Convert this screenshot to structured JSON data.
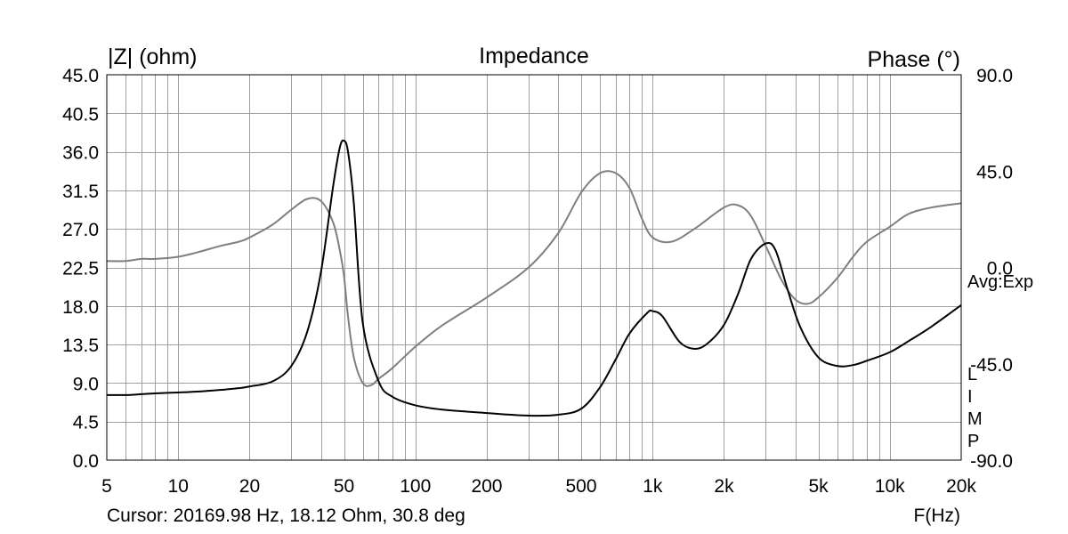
{
  "chart_data": {
    "type": "line",
    "title": "Impedance",
    "ylabel_left": "|Z| (ohm)",
    "ylabel_right": "Phase (°)",
    "xlabel": "F(Hz)",
    "x_scale": "log",
    "xlim": [
      5,
      20000
    ],
    "ylim_left": [
      0,
      45
    ],
    "ylim_right": [
      -90,
      90
    ],
    "grid": true,
    "x_ticks": [
      {
        "value": 5,
        "label": "5"
      },
      {
        "value": 10,
        "label": "10"
      },
      {
        "value": 20,
        "label": "20"
      },
      {
        "value": 50,
        "label": "50"
      },
      {
        "value": 100,
        "label": "100"
      },
      {
        "value": 200,
        "label": "200"
      },
      {
        "value": 500,
        "label": "500"
      },
      {
        "value": 1000,
        "label": "1k"
      },
      {
        "value": 2000,
        "label": "2k"
      },
      {
        "value": 5000,
        "label": "5k"
      },
      {
        "value": 10000,
        "label": "10k"
      },
      {
        "value": 20000,
        "label": "20k"
      }
    ],
    "y_ticks_left": [
      {
        "value": 45,
        "label": "45.0"
      },
      {
        "value": 40.5,
        "label": "40.5"
      },
      {
        "value": 36,
        "label": "36.0"
      },
      {
        "value": 31.5,
        "label": "31.5"
      },
      {
        "value": 27,
        "label": "27.0"
      },
      {
        "value": 22.5,
        "label": "22.5"
      },
      {
        "value": 18,
        "label": "18.0"
      },
      {
        "value": 13.5,
        "label": "13.5"
      },
      {
        "value": 9,
        "label": "9.0"
      },
      {
        "value": 4.5,
        "label": "4.5"
      },
      {
        "value": 0,
        "label": "0.0"
      }
    ],
    "y_ticks_right": [
      {
        "value": 90,
        "label": "90.0"
      },
      {
        "value": 45,
        "label": "45.0"
      },
      {
        "value": 0,
        "label": "0.0"
      },
      {
        "value": -45,
        "label": "-45.0"
      },
      {
        "value": -90,
        "label": "-90.0"
      }
    ],
    "series": [
      {
        "axis": "left",
        "color": "#000000",
        "x": [
          5,
          6,
          7,
          8,
          10,
          12,
          15,
          18,
          20,
          25,
          30,
          35,
          40,
          45,
          48,
          50,
          52,
          55,
          60,
          70,
          80,
          100,
          130,
          200,
          300,
          400,
          500,
          600,
          700,
          800,
          950,
          1000,
          1100,
          1300,
          1500,
          1700,
          2000,
          2300,
          2600,
          3000,
          3300,
          3700,
          4200,
          5000,
          6000,
          7000,
          8000,
          10000,
          12000,
          15000,
          20000
        ],
        "y": [
          7.6,
          7.6,
          7.7,
          7.8,
          7.9,
          8.0,
          8.2,
          8.4,
          8.6,
          9.2,
          11.0,
          15.0,
          22.0,
          32.0,
          36.5,
          37.3,
          36.0,
          30.0,
          16.0,
          9.2,
          7.4,
          6.4,
          5.9,
          5.5,
          5.2,
          5.3,
          6.0,
          8.5,
          11.8,
          14.8,
          17.2,
          17.4,
          16.8,
          13.8,
          13.0,
          13.6,
          15.8,
          19.5,
          23.5,
          25.3,
          24.5,
          20.0,
          15.5,
          12.0,
          11.0,
          11.1,
          11.6,
          12.6,
          13.9,
          15.6,
          18.1
        ]
      },
      {
        "axis": "right",
        "color": "#7f7f7f",
        "x": [
          5,
          6,
          7,
          8,
          10,
          12,
          15,
          18,
          20,
          25,
          30,
          35,
          40,
          45,
          48,
          50,
          52,
          55,
          60,
          65,
          70,
          80,
          100,
          130,
          200,
          300,
          400,
          500,
          600,
          700,
          800,
          900,
          1000,
          1200,
          1500,
          2000,
          2300,
          2600,
          3000,
          3500,
          4000,
          4500,
          5000,
          6000,
          7000,
          8000,
          10000,
          12000,
          15000,
          20000
        ],
        "y": [
          3,
          3,
          4,
          4,
          5,
          7,
          10,
          12,
          14,
          20,
          27,
          32,
          31,
          21,
          8,
          -4,
          -23,
          -42,
          -54,
          -55,
          -52,
          -47,
          -37,
          -27,
          -14,
          0,
          16,
          35,
          44,
          44,
          37,
          23,
          14,
          12,
          18,
          28,
          29,
          24,
          10,
          -6,
          -15,
          -17,
          -14,
          -5,
          5,
          12,
          19,
          25,
          28,
          30
        ]
      }
    ],
    "annotations": {
      "right_side_label": "Avg:Exp",
      "legend_letters": [
        "L",
        "I",
        "M",
        "P"
      ],
      "cursor": "Cursor: 20169.98 Hz, 18.12 Ohm, 30.8 deg"
    }
  }
}
